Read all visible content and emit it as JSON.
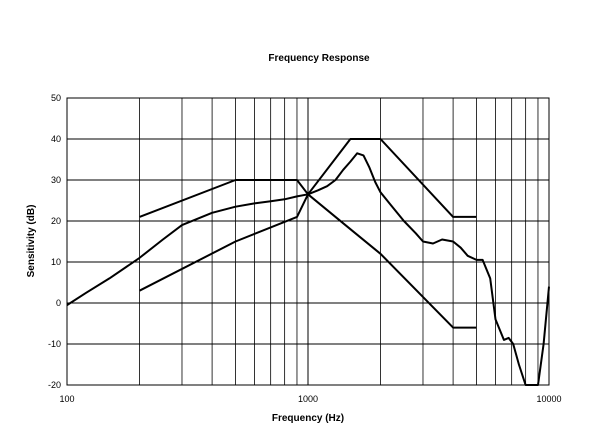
{
  "chart_data": {
    "type": "line",
    "title": "Frequency Response",
    "xlabel": "Frequency (Hz)",
    "ylabel": "Sensitivity (dB)",
    "x_scale": "log",
    "xlim": [
      100,
      10000
    ],
    "ylim": [
      -20,
      50
    ],
    "x_ticks": [
      "100",
      "1000",
      "10000"
    ],
    "y_ticks": [
      "50",
      "40",
      "30",
      "20",
      "10",
      "0",
      "-10",
      "-20"
    ],
    "grid": true,
    "legend": "none",
    "series": [
      {
        "points": [
          [
            200,
            21
          ],
          [
            500,
            30
          ],
          [
            900,
            30
          ],
          [
            1000,
            26.5
          ],
          [
            1500,
            40
          ],
          [
            2000,
            40
          ],
          [
            4000,
            21
          ],
          [
            5000,
            21
          ]
        ]
      },
      {
        "points": [
          [
            200,
            3
          ],
          [
            500,
            15
          ],
          [
            900,
            21
          ],
          [
            1000,
            26.5
          ],
          [
            1500,
            18
          ],
          [
            2000,
            12
          ],
          [
            4000,
            -6
          ],
          [
            5000,
            -6
          ]
        ]
      },
      {
        "points": [
          [
            100,
            -0.5
          ],
          [
            120,
            2.5
          ],
          [
            150,
            6
          ],
          [
            200,
            11
          ],
          [
            250,
            15.5
          ],
          [
            300,
            19
          ],
          [
            400,
            22
          ],
          [
            500,
            23.5
          ],
          [
            600,
            24.3
          ],
          [
            700,
            24.8
          ],
          [
            800,
            25.3
          ],
          [
            900,
            26
          ],
          [
            1000,
            26.5
          ],
          [
            1100,
            27.5
          ],
          [
            1200,
            28.5
          ],
          [
            1300,
            30
          ],
          [
            1400,
            32.5
          ],
          [
            1500,
            34.5
          ],
          [
            1600,
            36.5
          ],
          [
            1700,
            36
          ],
          [
            1800,
            33
          ],
          [
            1900,
            29.5
          ],
          [
            2000,
            27
          ],
          [
            2200,
            24
          ],
          [
            2500,
            20
          ],
          [
            2800,
            17
          ],
          [
            3000,
            15
          ],
          [
            3300,
            14.5
          ],
          [
            3600,
            15.5
          ],
          [
            4000,
            15
          ],
          [
            4300,
            13.5
          ],
          [
            4600,
            11.5
          ],
          [
            5000,
            10.5
          ],
          [
            5300,
            10.5
          ],
          [
            5700,
            6
          ],
          [
            6000,
            -4
          ],
          [
            6500,
            -9
          ],
          [
            6800,
            -8.5
          ],
          [
            7100,
            -10
          ],
          [
            7500,
            -15
          ],
          [
            8000,
            -20
          ],
          [
            9000,
            -20
          ],
          [
            9500,
            -10
          ],
          [
            10000,
            4
          ]
        ]
      }
    ]
  }
}
